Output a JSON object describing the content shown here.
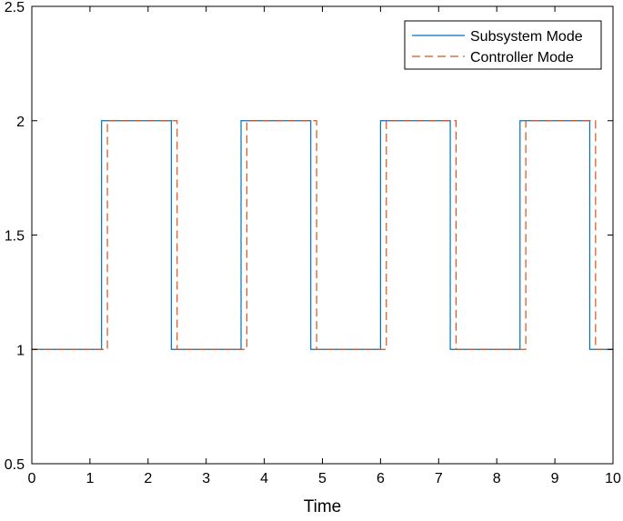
{
  "chart_data": {
    "type": "line",
    "xlabel": "Time",
    "ylabel": "",
    "xlim": [
      0,
      10
    ],
    "ylim": [
      0.5,
      2.5
    ],
    "x_ticks": [
      0,
      1,
      2,
      3,
      4,
      5,
      6,
      7,
      8,
      9,
      10
    ],
    "x_tick_labels": [
      "0",
      "1",
      "2",
      "3",
      "4",
      "5",
      "6",
      "7",
      "8",
      "9",
      "10"
    ],
    "y_ticks": [
      0.5,
      1,
      1.5,
      2,
      2.5
    ],
    "y_tick_labels": [
      "0.5",
      "1",
      "1.5",
      "2",
      "2.5"
    ],
    "grid": false,
    "legend_position": "top-right",
    "series": [
      {
        "name": "Subsystem Mode",
        "color": "#0072BD",
        "line_style": "solid",
        "step": true,
        "x": [
          0,
          1.2,
          2.4,
          3.6,
          4.8,
          6.0,
          7.2,
          8.4,
          9.6,
          10
        ],
        "y": [
          1,
          2,
          1,
          2,
          1,
          2,
          1,
          2,
          1,
          1
        ]
      },
      {
        "name": "Controller Mode",
        "color": "#D95319",
        "line_style": "dashed",
        "step": true,
        "x": [
          0,
          1.3,
          2.5,
          3.7,
          4.9,
          6.1,
          7.3,
          8.5,
          9.7,
          10
        ],
        "y": [
          1,
          2,
          1,
          2,
          1,
          2,
          1,
          2,
          1,
          1
        ]
      }
    ]
  }
}
